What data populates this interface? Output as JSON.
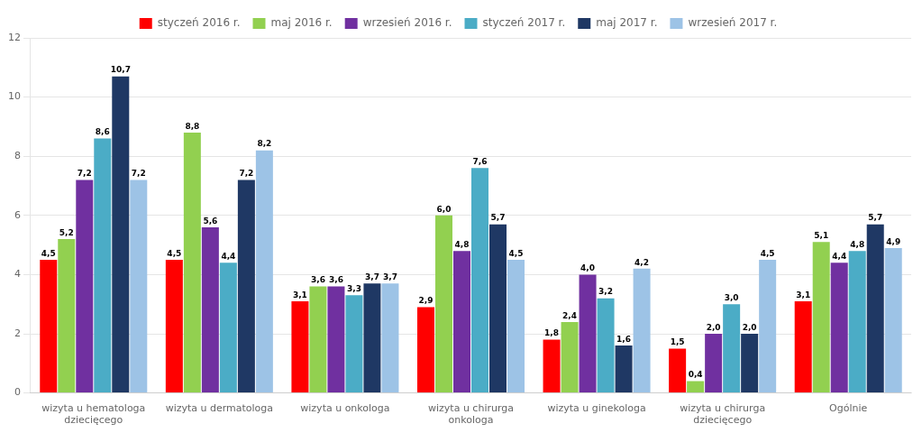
{
  "chart_data": {
    "type": "bar",
    "categories": [
      "wizyta u hematologa\ndziecięcego",
      "wizyta u dermatologa",
      "wizyta u onkologa",
      "wizyta u chirurga\nonkologa",
      "wizyta u ginekologa",
      "wizyta u chirurga\ndziecięcego",
      "Ogólnie"
    ],
    "series": [
      {
        "name": "styczeń 2016 r.",
        "color": "#ff0000",
        "values": [
          4.5,
          4.5,
          3.1,
          2.9,
          1.8,
          1.5,
          3.1
        ],
        "value_labels": [
          "4,5",
          "4,5",
          "3,1",
          "2,9",
          "1,8",
          "1,5",
          "3,1"
        ]
      },
      {
        "name": "maj 2016 r.",
        "color": "#92d050",
        "values": [
          5.2,
          8.8,
          3.6,
          6.0,
          2.4,
          0.4,
          5.1
        ],
        "value_labels": [
          "5,2",
          "8,8",
          "3,6",
          "6,0",
          "2,4",
          "0,4",
          "5,1"
        ]
      },
      {
        "name": "wrzesień 2016 r.",
        "color": "#7030a0",
        "values": [
          7.2,
          5.6,
          3.6,
          4.8,
          4.0,
          2.0,
          4.4
        ],
        "value_labels": [
          "7,2",
          "5,6",
          "3,6",
          "4,8",
          "4,0",
          "2,0",
          "4,4"
        ]
      },
      {
        "name": "styczeń 2017 r.",
        "color": "#4bacc6",
        "values": [
          8.6,
          4.4,
          3.3,
          7.6,
          3.2,
          3.0,
          4.8
        ],
        "value_labels": [
          "8,6",
          "4,4",
          "3,3",
          "7,6",
          "3,2",
          "3,0",
          "4,8"
        ]
      },
      {
        "name": "maj 2017 r.",
        "color": "#1f3864",
        "values": [
          10.7,
          7.2,
          3.7,
          5.7,
          1.6,
          2.0,
          5.7
        ],
        "value_labels": [
          "10,7",
          "7,2",
          "3,7",
          "5,7",
          "1,6",
          "2,0",
          "5,7"
        ]
      },
      {
        "name": "wrzesień 2017 r.",
        "color": "#9dc3e6",
        "values": [
          7.2,
          8.2,
          3.7,
          4.5,
          4.2,
          4.5,
          4.9
        ],
        "value_labels": [
          "7,2",
          "8,2",
          "3,7",
          "4,5",
          "4,2",
          "4,5",
          "4,9"
        ]
      }
    ],
    "ylim": [
      0,
      12
    ],
    "yticks": [
      0,
      2,
      4,
      6,
      8,
      10,
      12
    ],
    "grid": true,
    "legend": "top",
    "data_labels": true
  }
}
